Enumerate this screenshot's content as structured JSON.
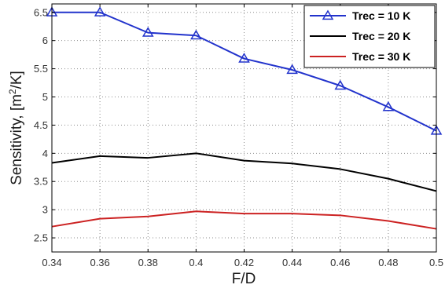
{
  "chart_data": {
    "type": "line",
    "title": "",
    "xlabel": "F/D",
    "ylabel_main": "Sensitivity, [m",
    "ylabel_sup": "2",
    "ylabel_end": "/K]",
    "x": [
      0.34,
      0.36,
      0.38,
      0.4,
      0.42,
      0.44,
      0.46,
      0.48,
      0.5
    ],
    "xlim": [
      0.34,
      0.5
    ],
    "ylim": [
      2.25,
      6.65
    ],
    "xticks": [
      "0.34",
      "0.36",
      "0.38",
      "0.4",
      "0.42",
      "0.44",
      "0.46",
      "0.48",
      "0.5"
    ],
    "xtick_values": [
      0.34,
      0.36,
      0.38,
      0.4,
      0.42,
      0.44,
      0.46,
      0.48,
      0.5
    ],
    "yticks": [
      "2.5",
      "3",
      "3.5",
      "4",
      "4.5",
      "5",
      "5.5",
      "6",
      "6.5"
    ],
    "ytick_values": [
      2.5,
      3,
      3.5,
      4,
      4.5,
      5,
      5.5,
      6,
      6.5
    ],
    "grid": true,
    "legend_position": "top-right",
    "series": [
      {
        "name": "Trec = 10 K",
        "color": "#2233cc",
        "marker": "triangle",
        "values": [
          6.5,
          6.5,
          6.14,
          6.09,
          5.68,
          5.48,
          5.2,
          4.82,
          4.4
        ]
      },
      {
        "name": "Trec = 20 K",
        "color": "#000000",
        "marker": "none",
        "values": [
          3.83,
          3.95,
          3.92,
          4.0,
          3.87,
          3.82,
          3.72,
          3.55,
          3.33
        ]
      },
      {
        "name": "Trec = 30 K",
        "color": "#cc2222",
        "marker": "none",
        "values": [
          2.7,
          2.84,
          2.88,
          2.97,
          2.93,
          2.93,
          2.9,
          2.8,
          2.66
        ]
      }
    ]
  }
}
